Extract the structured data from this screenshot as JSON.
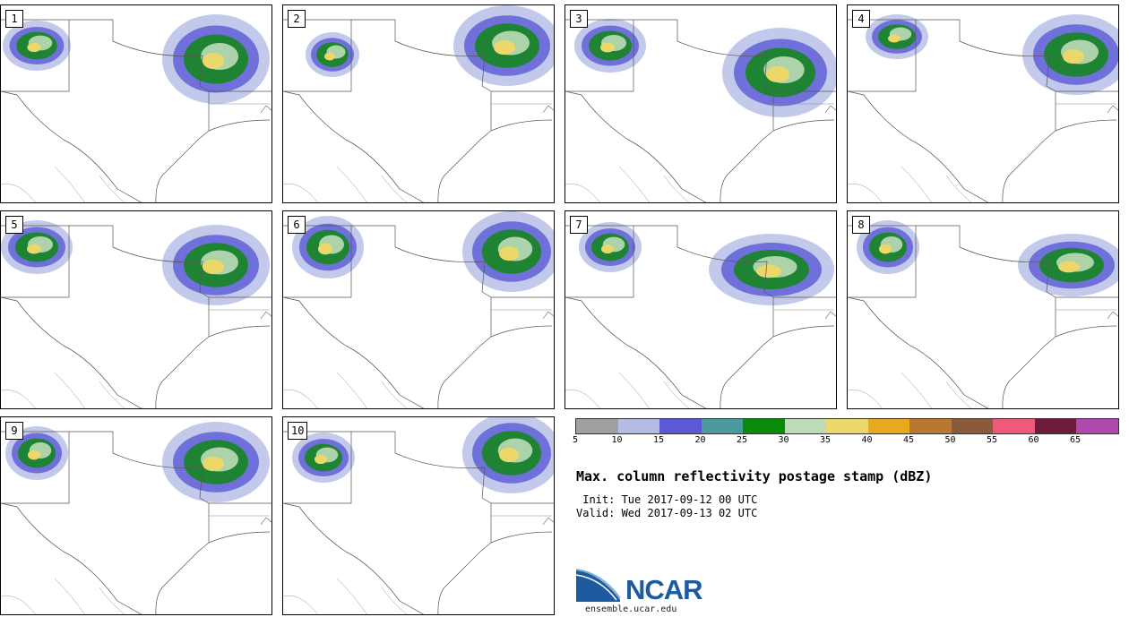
{
  "panels": [
    {
      "label": "1"
    },
    {
      "label": "2"
    },
    {
      "label": "3"
    },
    {
      "label": "4"
    },
    {
      "label": "5"
    },
    {
      "label": "6"
    },
    {
      "label": "7"
    },
    {
      "label": "8"
    },
    {
      "label": "9"
    },
    {
      "label": "10"
    }
  ],
  "colorbar": {
    "colors": [
      "#a0a0a0",
      "#b4bce6",
      "#5a5ad6",
      "#4a9aa0",
      "#0a8a0a",
      "#bcdcb8",
      "#ecd86a",
      "#e8a820",
      "#b87830",
      "#8a5a3c",
      "#ee5a7a",
      "#6e1a3a",
      "#ae4aae"
    ],
    "ticks": [
      "5",
      "10",
      "15",
      "20",
      "25",
      "30",
      "35",
      "40",
      "45",
      "50",
      "55",
      "60",
      "65"
    ]
  },
  "title": "Max. column reflectivity postage stamp (dBZ)",
  "init": " Init: Tue 2017-09-12 00 UTC",
  "valid": "Valid: Wed 2017-09-13 02 UTC",
  "logo": {
    "text": "NCAR"
  },
  "url": "ensemble.ucar.edu"
}
